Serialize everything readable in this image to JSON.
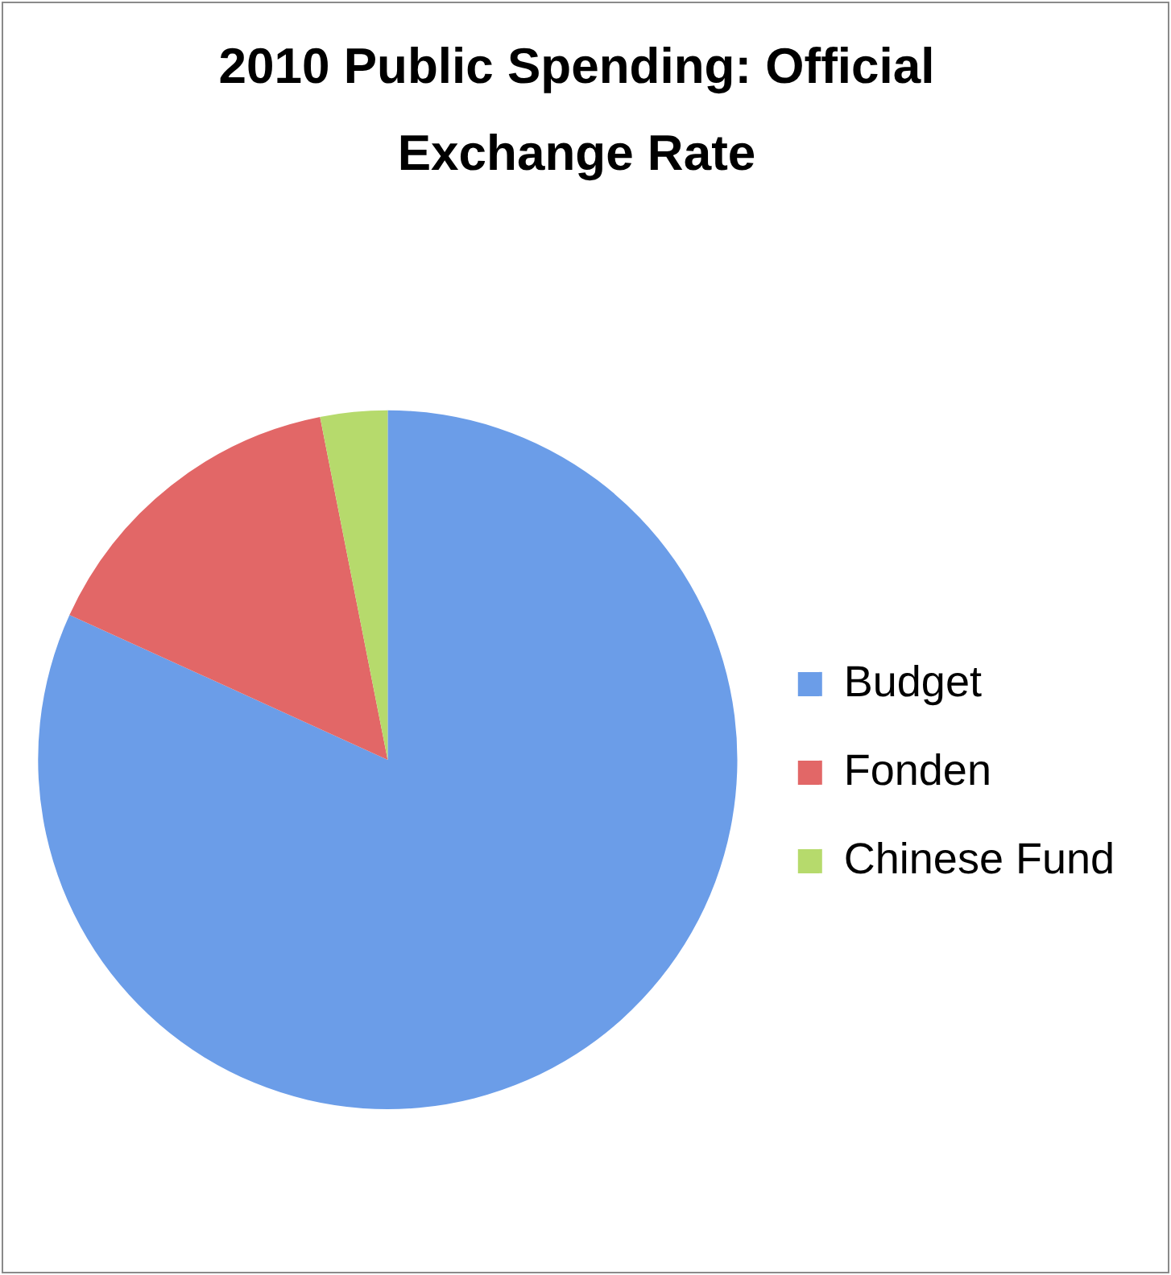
{
  "chart_data": {
    "type": "pie",
    "title": "2010 Public Spending: Official Exchange Rate",
    "categories": [
      "Budget",
      "Fonden",
      "Chinese Fund"
    ],
    "values": [
      81.8,
      15.1,
      3.1
    ],
    "colors": [
      "#6b9de8",
      "#e26767",
      "#b6da6c"
    ],
    "legend": "right"
  }
}
